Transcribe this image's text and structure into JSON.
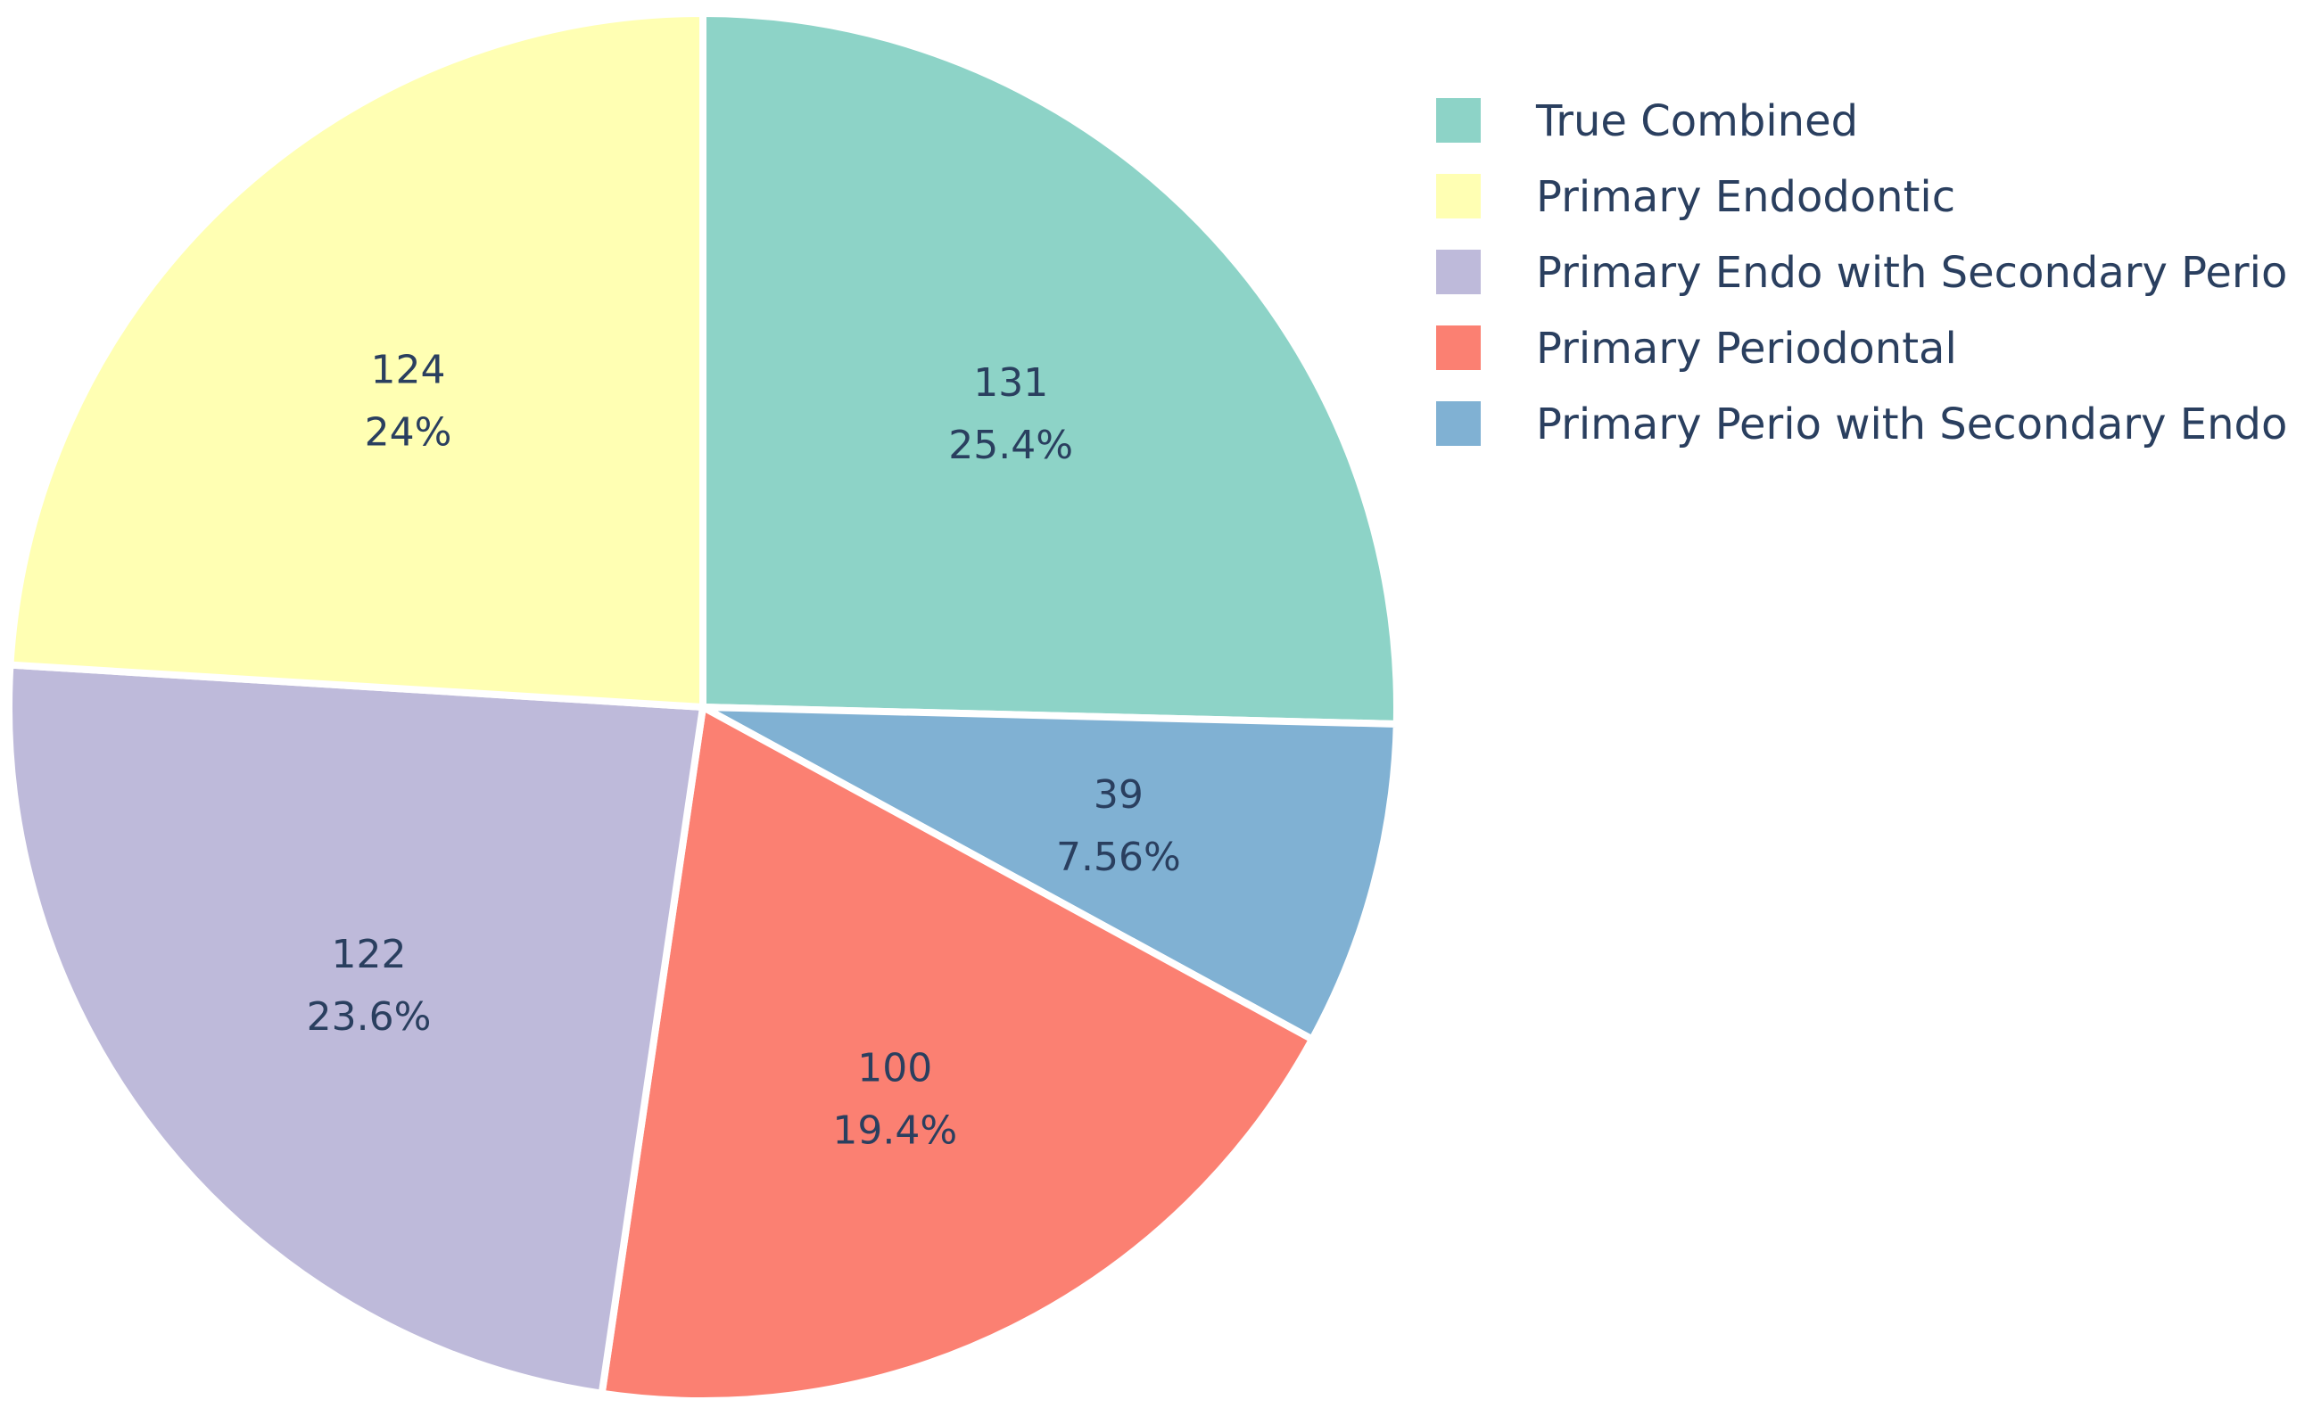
{
  "chart_data": {
    "type": "pie",
    "direction": "clockwise",
    "start_angle_deg": 90,
    "sort": "none",
    "text_info": [
      "value",
      "percent"
    ],
    "legend_position": "top-right",
    "slices": [
      {
        "label": "True Combined",
        "value": 131,
        "percent_label": "25.4%",
        "color": "#8dd3c7"
      },
      {
        "label": "Primary Perio with Secondary Endo",
        "value": 39,
        "percent_label": "7.56%",
        "color": "#80b1d3"
      },
      {
        "label": "Primary Periodontal",
        "value": 100,
        "percent_label": "19.4%",
        "color": "#fb8072"
      },
      {
        "label": "Primary Endo with Secondary Perio",
        "value": 122,
        "percent_label": "23.6%",
        "color": "#bebada"
      },
      {
        "label": "Primary Endodontic",
        "value": 124,
        "percent_label": "24%",
        "color": "#ffffb3"
      }
    ],
    "legend": [
      {
        "label": "True Combined",
        "color": "#8dd3c7"
      },
      {
        "label": "Primary Endodontic",
        "color": "#ffffb3"
      },
      {
        "label": "Primary Endo with Secondary Perio",
        "color": "#bebada"
      },
      {
        "label": "Primary Periodontal",
        "color": "#fb8072"
      },
      {
        "label": "Primary Perio with Secondary Endo",
        "color": "#80b1d3"
      }
    ]
  }
}
